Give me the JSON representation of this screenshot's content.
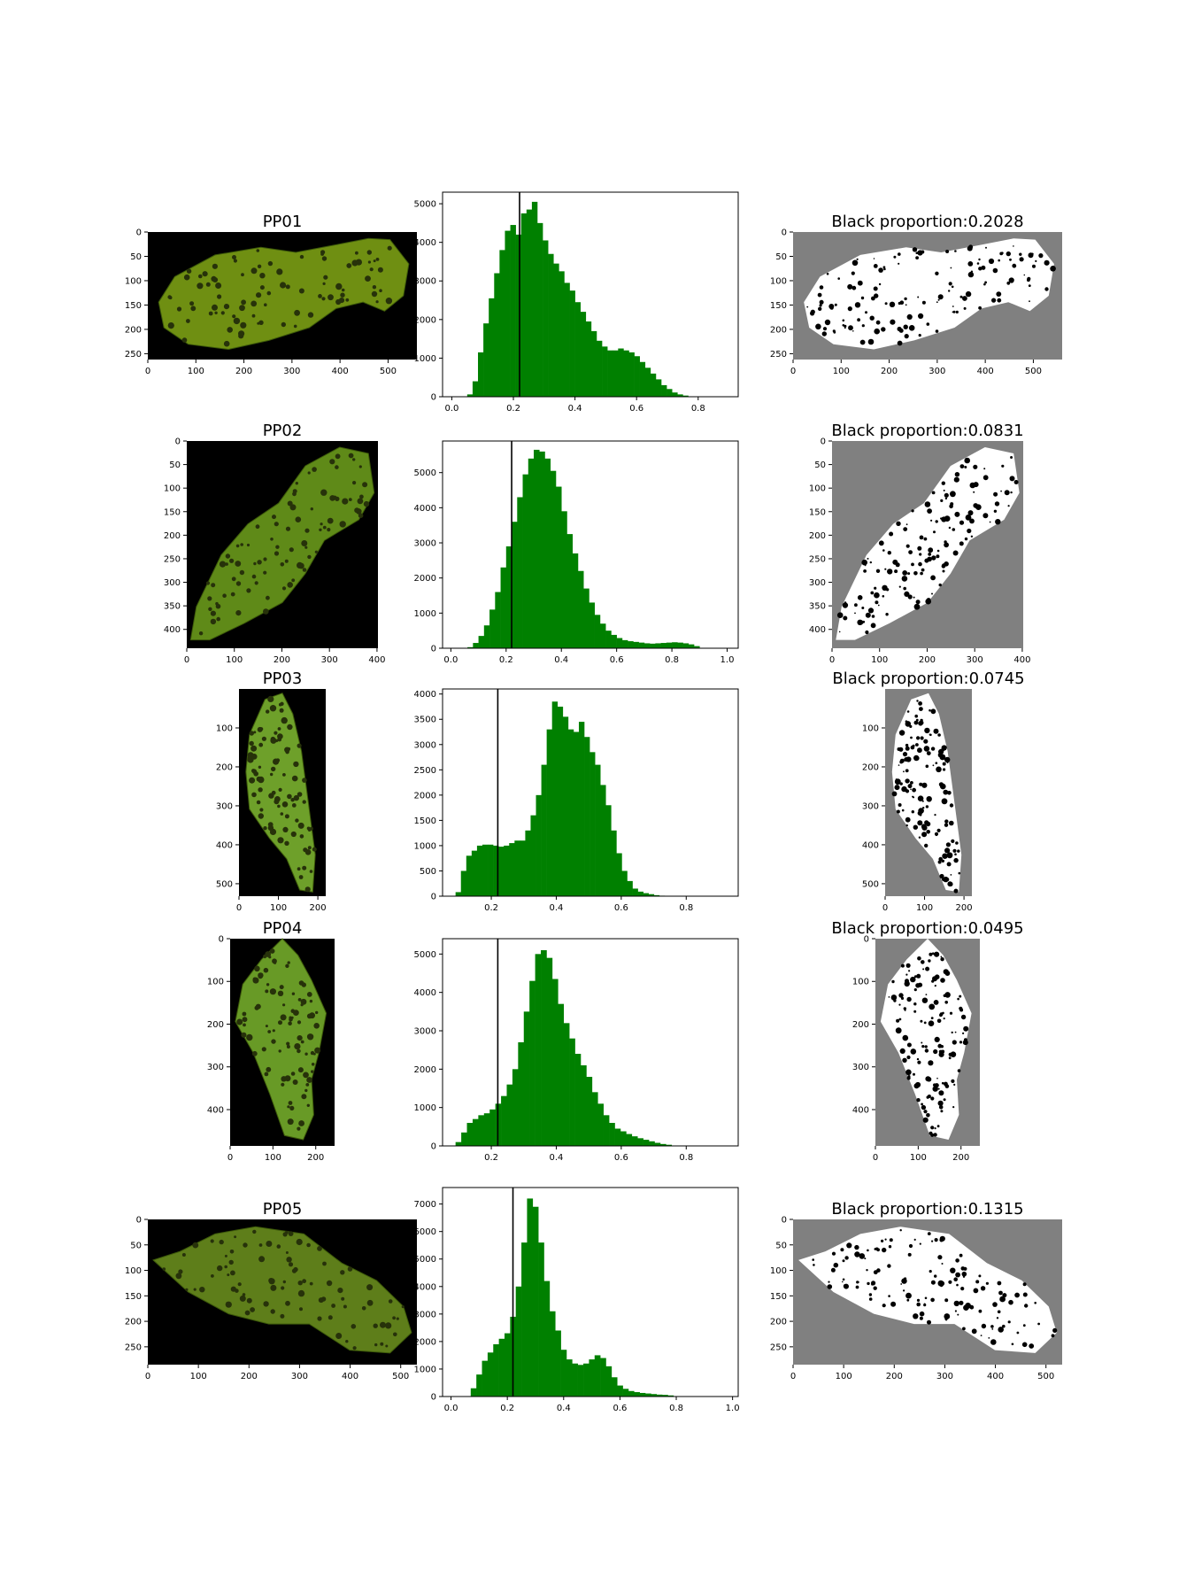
{
  "colors": {
    "bar": "#008000",
    "threshold": "#000000",
    "mask_bg": "#808080",
    "mask_body": "#ffffff",
    "spot": "#000000",
    "photo_bg": "#000000"
  },
  "threshold_x": 0.22,
  "rows": [
    {
      "id": "PP01",
      "image": {
        "title": "PP01",
        "xlim": [
          0,
          560
        ],
        "ylim": [
          0,
          262
        ],
        "xticks": [
          0,
          100,
          200,
          300,
          400,
          500
        ],
        "yticks": [
          0,
          50,
          100,
          150,
          200,
          250
        ],
        "frog_color": "#6f8f12"
      },
      "chart_data": {
        "type": "bar",
        "title": "",
        "xlim": [
          -0.03,
          0.93
        ],
        "ylim": [
          0,
          5300
        ],
        "xticks": [
          "0.0",
          "0.2",
          "0.4",
          "0.6",
          "0.8"
        ],
        "xtick_values": [
          0,
          0.2,
          0.4,
          0.6,
          0.8
        ],
        "yticks": [
          0,
          1000,
          2000,
          3000,
          4000,
          5000
        ],
        "bin_start": 0.05,
        "bin_width": 0.0175,
        "values": [
          60,
          400,
          1150,
          1900,
          2550,
          3200,
          3800,
          4300,
          4450,
          4200,
          4750,
          4850,
          5050,
          4500,
          4050,
          3700,
          3450,
          3250,
          2950,
          2750,
          2450,
          2200,
          1950,
          1700,
          1450,
          1300,
          1200,
          1200,
          1250,
          1200,
          1150,
          1050,
          900,
          750,
          600,
          450,
          300,
          200,
          110,
          60,
          30
        ]
      },
      "mask": {
        "title": "Black proportion:0.2028",
        "xlim": [
          0,
          560
        ],
        "ylim": [
          0,
          262
        ],
        "xticks": [
          0,
          100,
          200,
          300,
          400,
          500
        ],
        "yticks": [
          0,
          50,
          100,
          150,
          200,
          250
        ]
      }
    },
    {
      "id": "PP02",
      "image": {
        "title": "PP02",
        "xlim": [
          0,
          402
        ],
        "ylim": [
          0,
          440
        ],
        "xticks": [
          0,
          100,
          200,
          300,
          400
        ],
        "yticks": [
          0,
          50,
          100,
          150,
          200,
          250,
          300,
          350,
          400
        ],
        "frog_color": "#5f8a18"
      },
      "chart_data": {
        "type": "bar",
        "title": "",
        "xlim": [
          -0.03,
          1.04
        ],
        "ylim": [
          0,
          5900
        ],
        "xticks": [
          "0.0",
          "0.2",
          "0.4",
          "0.6",
          "0.8",
          "1.0"
        ],
        "xtick_values": [
          0,
          0.2,
          0.4,
          0.6,
          0.8,
          1.0
        ],
        "yticks": [
          0,
          1000,
          2000,
          3000,
          4000,
          5000
        ],
        "bin_start": 0.06,
        "bin_width": 0.02,
        "values": [
          30,
          150,
          350,
          650,
          1100,
          1600,
          2300,
          2900,
          3600,
          4300,
          4950,
          5400,
          5650,
          5600,
          5400,
          5050,
          4600,
          3900,
          3250,
          2700,
          2200,
          1700,
          1300,
          950,
          700,
          500,
          380,
          290,
          230,
          200,
          180,
          160,
          140,
          130,
          140,
          150,
          160,
          170,
          160,
          140,
          110,
          60
        ]
      },
      "mask": {
        "title": "Black proportion:0.0831",
        "xlim": [
          0,
          402
        ],
        "ylim": [
          0,
          440
        ],
        "xticks": [
          0,
          100,
          200,
          300,
          400
        ],
        "yticks": [
          0,
          50,
          100,
          150,
          200,
          250,
          300,
          350,
          400
        ]
      }
    },
    {
      "id": "PP03",
      "image": {
        "title": "PP03",
        "xlim": [
          0,
          220
        ],
        "ylim": [
          0,
          532
        ],
        "xticks": [
          0,
          100,
          200
        ],
        "yticks": [
          100,
          200,
          300,
          400,
          500
        ],
        "frog_color": "#6ea02a"
      },
      "chart_data": {
        "type": "bar",
        "title": "",
        "xlim": [
          0.05,
          0.96
        ],
        "ylim": [
          0,
          4100
        ],
        "xticks": [
          "0.2",
          "0.4",
          "0.6",
          "0.8"
        ],
        "xtick_values": [
          0.2,
          0.4,
          0.6,
          0.8
        ],
        "yticks": [
          0,
          500,
          1000,
          1500,
          2000,
          2500,
          3000,
          3500,
          4000
        ],
        "bin_start": 0.09,
        "bin_width": 0.0165,
        "values": [
          80,
          500,
          800,
          900,
          1000,
          1020,
          1020,
          1000,
          980,
          1000,
          1050,
          1100,
          1100,
          1300,
          1600,
          2000,
          2600,
          3300,
          3850,
          3750,
          3550,
          3300,
          3250,
          3450,
          3150,
          2850,
          2600,
          2200,
          1800,
          1300,
          850,
          500,
          300,
          150,
          90,
          60,
          40,
          20,
          10
        ]
      },
      "mask": {
        "title": "Black proportion:0.0745",
        "xlim": [
          0,
          220
        ],
        "ylim": [
          0,
          532
        ],
        "xticks": [
          0,
          100,
          200
        ],
        "yticks": [
          100,
          200,
          300,
          400,
          500
        ]
      }
    },
    {
      "id": "PP04",
      "image": {
        "title": "PP04",
        "xlim": [
          0,
          244
        ],
        "ylim": [
          0,
          485
        ],
        "xticks": [
          0,
          100,
          200
        ],
        "yticks": [
          0,
          100,
          200,
          300,
          400
        ],
        "frog_color": "#689a26"
      },
      "chart_data": {
        "type": "bar",
        "title": "",
        "xlim": [
          0.05,
          0.96
        ],
        "ylim": [
          0,
          5400
        ],
        "xticks": [
          "0.2",
          "0.4",
          "0.6",
          "0.8"
        ],
        "xtick_values": [
          0.2,
          0.4,
          0.6,
          0.8
        ],
        "yticks": [
          0,
          1000,
          2000,
          3000,
          4000,
          5000
        ],
        "bin_start": 0.09,
        "bin_width": 0.0175,
        "values": [
          100,
          350,
          600,
          700,
          800,
          850,
          950,
          1100,
          1300,
          1600,
          2000,
          2700,
          3500,
          4300,
          5000,
          5100,
          4900,
          4350,
          3700,
          3200,
          2800,
          2400,
          2100,
          1800,
          1400,
          1100,
          800,
          600,
          450,
          380,
          310,
          250,
          200,
          160,
          120,
          80,
          50,
          30
        ]
      },
      "mask": {
        "title": "Black proportion:0.0495",
        "xlim": [
          0,
          244
        ],
        "ylim": [
          0,
          485
        ],
        "xticks": [
          0,
          100,
          200
        ],
        "yticks": [
          0,
          100,
          200,
          300,
          400
        ]
      }
    },
    {
      "id": "PP05",
      "image": {
        "title": "PP05",
        "xlim": [
          0,
          532
        ],
        "ylim": [
          0,
          285
        ],
        "xticks": [
          0,
          100,
          200,
          300,
          400,
          500
        ],
        "yticks": [
          0,
          50,
          100,
          150,
          200,
          250
        ],
        "frog_color": "#5e7e1a"
      },
      "chart_data": {
        "type": "bar",
        "title": "",
        "xlim": [
          -0.03,
          1.02
        ],
        "ylim": [
          0,
          7600
        ],
        "xticks": [
          "0.0",
          "0.2",
          "0.4",
          "0.6",
          "0.8",
          "1.0"
        ],
        "xtick_values": [
          0,
          0.2,
          0.4,
          0.6,
          0.8,
          1.0
        ],
        "yticks": [
          0,
          1000,
          2000,
          3000,
          4000,
          5000,
          6000,
          7000
        ],
        "bin_start": 0.07,
        "bin_width": 0.02,
        "values": [
          300,
          800,
          1300,
          1600,
          1900,
          2100,
          2300,
          2900,
          4000,
          5600,
          7200,
          6900,
          5600,
          4200,
          3100,
          2400,
          1700,
          1350,
          1200,
          1150,
          1200,
          1350,
          1500,
          1400,
          1100,
          700,
          400,
          280,
          200,
          160,
          130,
          110,
          90,
          70,
          60,
          40
        ]
      },
      "mask": {
        "title": "Black proportion:0.1315",
        "xlim": [
          0,
          532
        ],
        "ylim": [
          0,
          285
        ],
        "xticks": [
          0,
          100,
          200,
          300,
          400,
          500
        ],
        "yticks": [
          0,
          50,
          100,
          150,
          200,
          250
        ]
      }
    }
  ]
}
